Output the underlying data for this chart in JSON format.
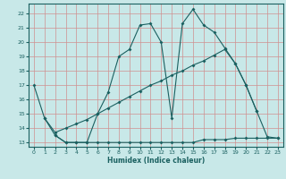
{
  "xlabel": "Humidex (Indice chaleur)",
  "bg_color": "#c8e8e8",
  "grid_color": "#d09090",
  "line_color": "#1a6060",
  "xlim": [
    -0.5,
    23.5
  ],
  "ylim": [
    12.7,
    22.7
  ],
  "yticks": [
    13,
    14,
    15,
    16,
    17,
    18,
    19,
    20,
    21,
    22
  ],
  "xticks": [
    0,
    1,
    2,
    3,
    4,
    5,
    6,
    7,
    8,
    9,
    10,
    11,
    12,
    13,
    14,
    15,
    16,
    17,
    18,
    19,
    20,
    21,
    22,
    23
  ],
  "line1_x": [
    0,
    1,
    2,
    3,
    4,
    5,
    6,
    7,
    8,
    9,
    10,
    11,
    12,
    13,
    14,
    15,
    16,
    17,
    18,
    19,
    20,
    21
  ],
  "line1_y": [
    17.0,
    14.7,
    13.5,
    13.0,
    13.0,
    13.0,
    15.0,
    16.5,
    19.0,
    19.5,
    21.2,
    21.3,
    20.0,
    14.7,
    21.3,
    22.3,
    21.2,
    20.7,
    19.6,
    18.5,
    17.0,
    15.2
  ],
  "line2_x": [
    2,
    3,
    4,
    5,
    6,
    7,
    8,
    9,
    10,
    11,
    12,
    13,
    14,
    15,
    16,
    17,
    18,
    19,
    20,
    21,
    22,
    23
  ],
  "line2_y": [
    13.5,
    13.0,
    13.0,
    13.0,
    13.0,
    13.0,
    13.0,
    13.0,
    13.0,
    13.0,
    13.0,
    13.0,
    13.0,
    13.0,
    13.2,
    13.2,
    13.2,
    13.3,
    13.3,
    13.3,
    13.3,
    13.3
  ],
  "line3_x": [
    1,
    2,
    3,
    4,
    5,
    6,
    7,
    8,
    9,
    10,
    11,
    12,
    13,
    14,
    15,
    16,
    17,
    18,
    19,
    20,
    21,
    22,
    23
  ],
  "line3_y": [
    14.7,
    13.7,
    14.0,
    14.3,
    14.6,
    15.0,
    15.4,
    15.8,
    16.2,
    16.6,
    17.0,
    17.3,
    17.7,
    18.0,
    18.4,
    18.7,
    19.1,
    19.5,
    18.5,
    17.0,
    15.2,
    13.4,
    13.3
  ]
}
